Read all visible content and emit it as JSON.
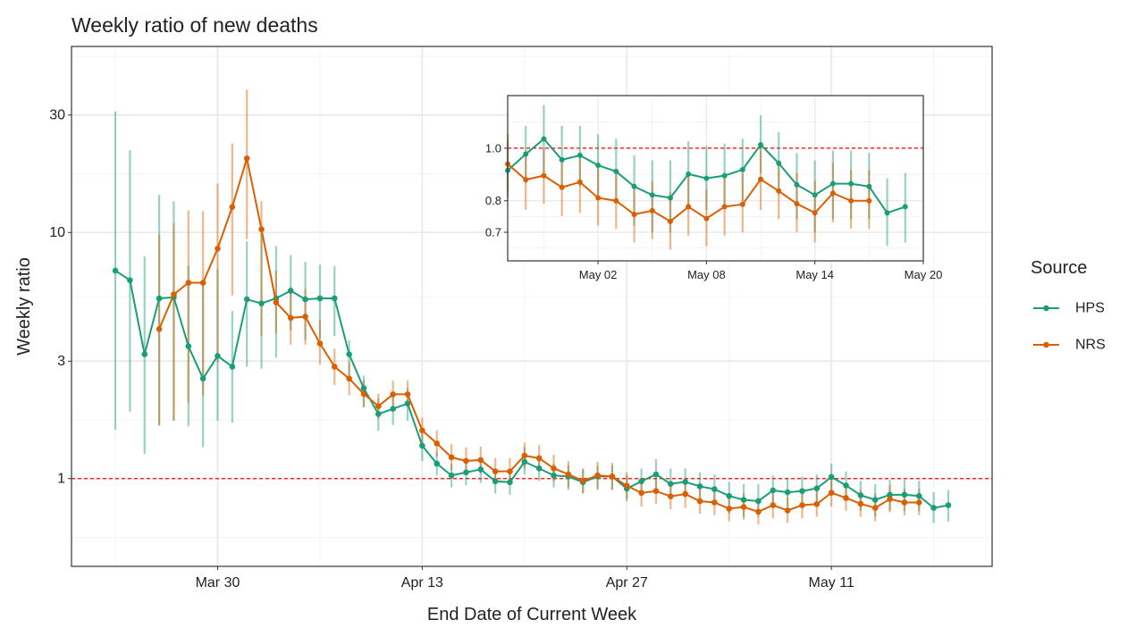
{
  "chart_data": {
    "type": "line",
    "title": "Weekly ratio of new deaths",
    "x_label": "End Date of Current Week",
    "y_label": "Weekly ratio",
    "legend_title": "Source",
    "legend_position": "right",
    "log_y": true,
    "grid": true,
    "hline": 1,
    "hline_color": "#ff0000",
    "xlim": [
      "Mar 20",
      "May 22"
    ],
    "xticks": [
      "Mar 30",
      "Apr 13",
      "Apr 27",
      "May 11"
    ],
    "ylim": [
      0.44,
      57
    ],
    "yticks": [
      1,
      3,
      10,
      30
    ],
    "x": [
      "Mar 23",
      "Mar 24",
      "Mar 25",
      "Mar 26",
      "Mar 27",
      "Mar 28",
      "Mar 29",
      "Mar 30",
      "Mar 31",
      "Apr 01",
      "Apr 02",
      "Apr 03",
      "Apr 04",
      "Apr 05",
      "Apr 06",
      "Apr 07",
      "Apr 08",
      "Apr 09",
      "Apr 10",
      "Apr 11",
      "Apr 12",
      "Apr 13",
      "Apr 14",
      "Apr 15",
      "Apr 16",
      "Apr 17",
      "Apr 18",
      "Apr 19",
      "Apr 20",
      "Apr 21",
      "Apr 22",
      "Apr 23",
      "Apr 24",
      "Apr 25",
      "Apr 26",
      "Apr 27",
      "Apr 28",
      "Apr 29",
      "Apr 30",
      "May 01",
      "May 02",
      "May 03",
      "May 04",
      "May 05",
      "May 06",
      "May 07",
      "May 08",
      "May 09",
      "May 10",
      "May 11",
      "May 12",
      "May 13",
      "May 14",
      "May 15",
      "May 16",
      "May 17",
      "May 18",
      "May 19"
    ],
    "series": [
      {
        "name": "HPS",
        "color": "#1b9e77",
        "values": [
          7.0,
          6.4,
          3.2,
          5.4,
          5.45,
          3.45,
          2.55,
          3.15,
          2.85,
          5.35,
          5.15,
          5.4,
          5.8,
          5.35,
          5.4,
          5.4,
          3.2,
          2.33,
          1.83,
          1.92,
          2.02,
          1.36,
          1.15,
          1.03,
          1.06,
          1.09,
          0.975,
          0.967,
          1.17,
          1.1,
          1.03,
          1.02,
          0.967,
          1.02,
          1.02,
          0.91,
          0.975,
          1.04,
          0.952,
          0.97,
          0.93,
          0.906,
          0.85,
          0.82,
          0.81,
          0.896,
          0.88,
          0.89,
          0.913,
          1.015,
          0.938,
          0.856,
          0.82,
          0.86,
          0.86,
          0.85,
          0.76,
          0.78
        ],
        "lower": [
          1.58,
          1.87,
          1.26,
          1.65,
          1.72,
          1.63,
          1.34,
          1.72,
          1.69,
          2.85,
          2.8,
          3.1,
          4.0,
          3.66,
          3.7,
          3.8,
          2.62,
          1.95,
          1.56,
          1.65,
          1.72,
          1.18,
          1.03,
          0.92,
          0.94,
          0.96,
          0.87,
          0.86,
          1.04,
          0.98,
          0.92,
          0.9,
          0.87,
          0.9,
          0.9,
          0.81,
          0.86,
          0.9,
          0.84,
          0.85,
          0.81,
          0.79,
          0.72,
          0.7,
          0.7,
          0.78,
          0.77,
          0.78,
          0.8,
          0.9,
          0.82,
          0.74,
          0.7,
          0.74,
          0.74,
          0.74,
          0.66,
          0.67
        ],
        "upper": [
          31,
          21.6,
          8,
          14.2,
          13.4,
          7.3,
          6.3,
          7.1,
          4.8,
          9.2,
          10,
          8.8,
          8.1,
          7.6,
          7.4,
          7.3,
          3.66,
          2.62,
          2.12,
          2.21,
          2.33,
          1.52,
          1.29,
          1.15,
          1.17,
          1.21,
          1.09,
          1.07,
          1.34,
          1.23,
          1.15,
          1.13,
          1.09,
          1.13,
          1.13,
          1.03,
          1.1,
          1.2,
          1.1,
          1.1,
          1.06,
          1.04,
          0.97,
          0.95,
          0.95,
          1.03,
          1.01,
          1.02,
          1.04,
          1.15,
          1.07,
          0.98,
          0.95,
          0.99,
          0.99,
          0.98,
          0.88,
          0.9
        ]
      },
      {
        "name": "NRS",
        "color": "#d95f02",
        "values": [
          null,
          null,
          null,
          4.05,
          5.6,
          6.25,
          6.25,
          8.6,
          12.7,
          20,
          10.3,
          5.2,
          4.5,
          4.55,
          3.54,
          2.85,
          2.55,
          2.21,
          1.97,
          2.2,
          2.2,
          1.57,
          1.39,
          1.22,
          1.18,
          1.19,
          1.07,
          1.07,
          1.24,
          1.21,
          1.1,
          1.04,
          0.98,
          1.03,
          1.02,
          0.935,
          0.875,
          0.89,
          0.847,
          0.866,
          0.81,
          0.8,
          0.755,
          0.767,
          0.733,
          0.78,
          0.742,
          0.78,
          0.788,
          0.876,
          0.834,
          0.79,
          0.76,
          0.826,
          0.8,
          0.8,
          null,
          null
        ],
        "lower": [
          null,
          null,
          null,
          1.64,
          1.72,
          2.04,
          2.18,
          2.97,
          5.55,
          9.4,
          3.8,
          3.9,
          3.5,
          3.5,
          2.9,
          2.4,
          2.18,
          1.95,
          1.75,
          1.95,
          1.95,
          1.4,
          1.23,
          1.08,
          1.04,
          1.05,
          0.95,
          0.95,
          1.1,
          1.07,
          0.97,
          0.92,
          0.87,
          0.91,
          0.9,
          0.83,
          0.77,
          0.79,
          0.75,
          0.76,
          0.72,
          0.71,
          0.67,
          0.68,
          0.65,
          0.69,
          0.66,
          0.69,
          0.7,
          0.77,
          0.74,
          0.7,
          0.67,
          0.73,
          0.71,
          0.71,
          null,
          null
        ],
        "upper": [
          null,
          null,
          null,
          9.8,
          10.9,
          12.3,
          12.2,
          15.8,
          23,
          38,
          13.4,
          7,
          6,
          5.9,
          4.4,
          3.37,
          2.97,
          2.51,
          2.21,
          2.5,
          2.5,
          1.77,
          1.57,
          1.38,
          1.34,
          1.35,
          1.21,
          1.21,
          1.4,
          1.37,
          1.25,
          1.18,
          1.1,
          1.17,
          1.16,
          1.06,
          0.99,
          1.0,
          0.96,
          0.98,
          0.92,
          0.91,
          0.86,
          0.87,
          0.83,
          0.89,
          0.84,
          0.89,
          0.9,
          0.99,
          0.95,
          0.9,
          0.87,
          0.94,
          0.91,
          0.91,
          null,
          null
        ]
      }
    ],
    "inset": {
      "xlim": [
        "Apr 27",
        "May 20"
      ],
      "xticks": [
        "May 02",
        "May 08",
        "May 14",
        "May 20"
      ],
      "ylim": [
        0.62,
        1.25
      ],
      "yticks": [
        {
          "value": 1,
          "label": "1.0"
        },
        {
          "value": 0.8,
          "label": "0.8"
        },
        {
          "value": 0.7,
          "label": "0.7"
        }
      ]
    }
  }
}
